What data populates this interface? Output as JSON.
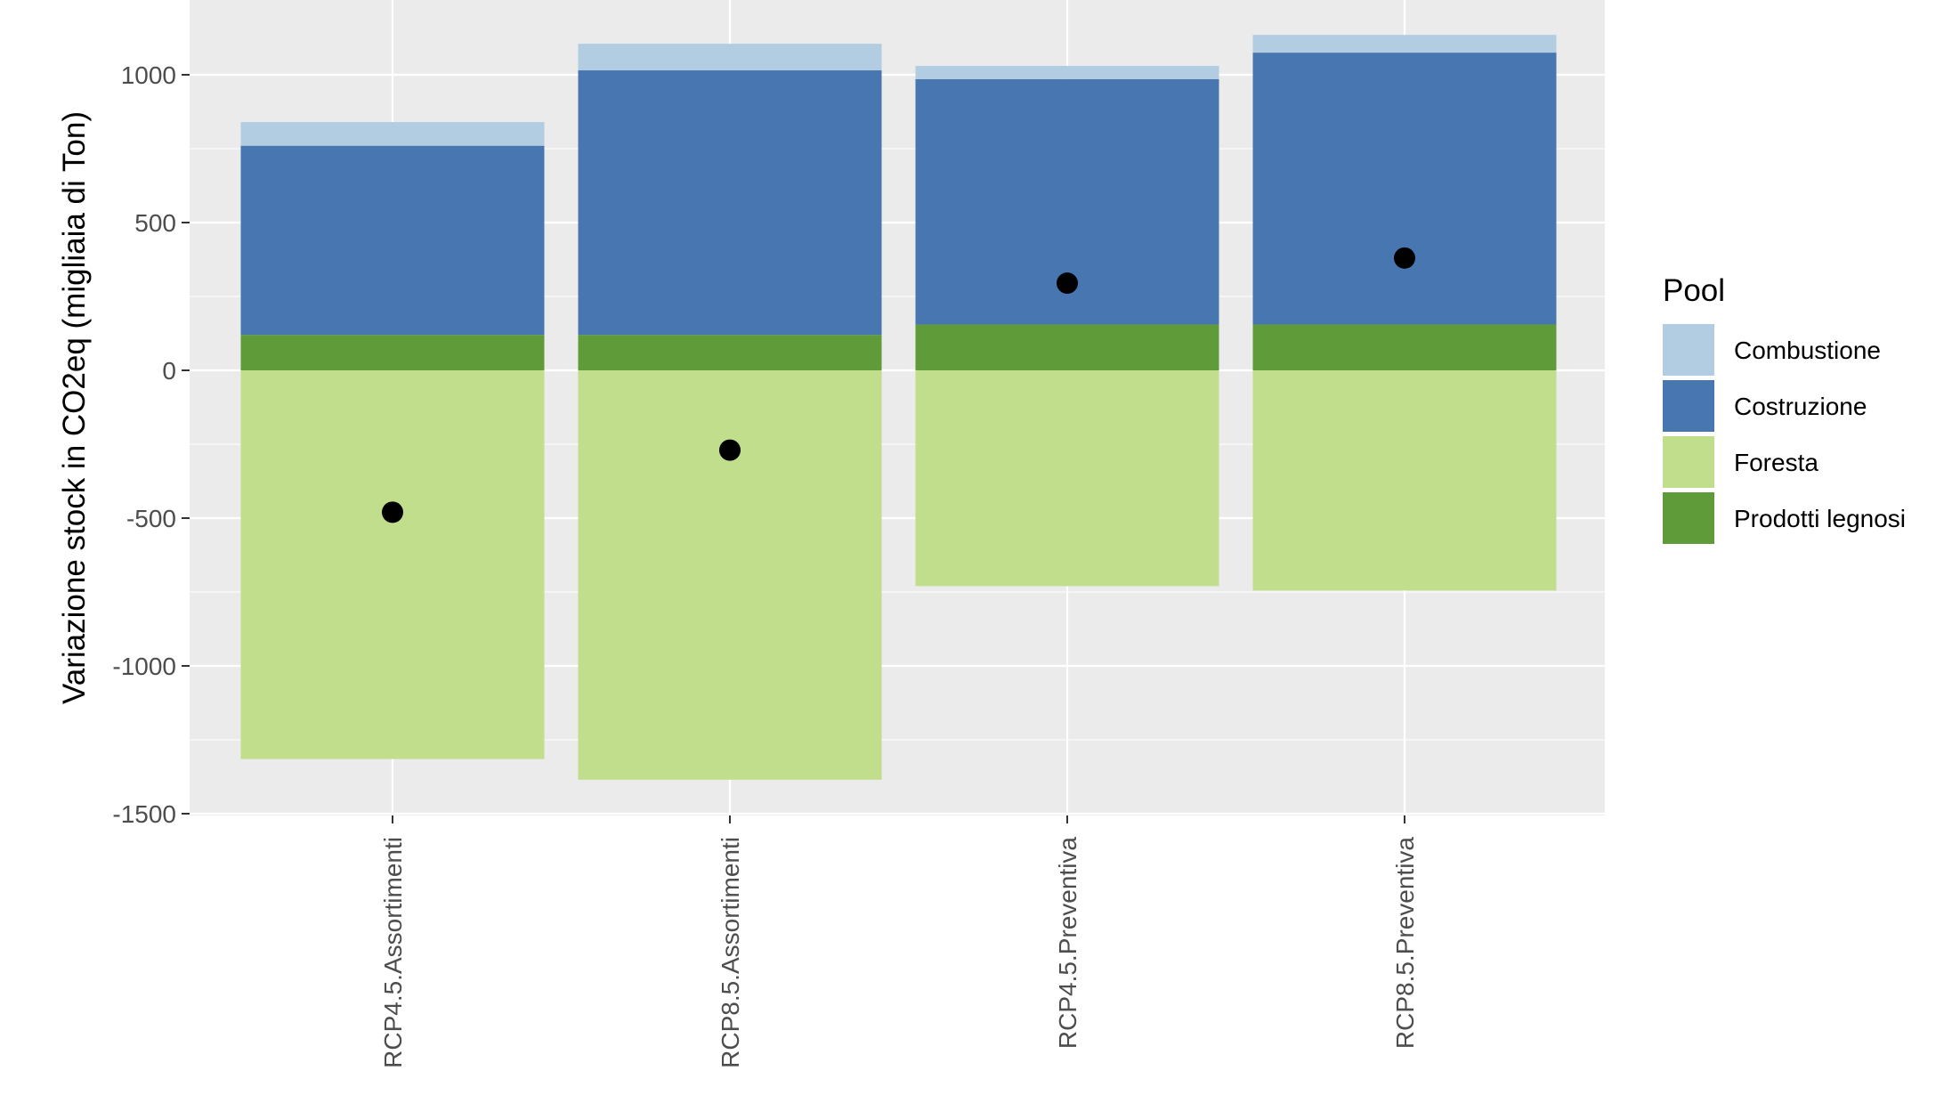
{
  "chart_data": {
    "type": "bar",
    "stacked": true,
    "categories": [
      "RCP4.5.Assortimenti",
      "RCP8.5.Assortimenti",
      "RCP4.5.Preventiva",
      "RCP8.5.Preventiva"
    ],
    "series": [
      {
        "name": "Prodotti legnosi",
        "color": "#5f9b39",
        "values": [
          120,
          120,
          155,
          155
        ]
      },
      {
        "name": "Costruzione",
        "color": "#4776b0",
        "values": [
          640,
          895,
          830,
          920
        ]
      },
      {
        "name": "Combustione",
        "color": "#b2cde2",
        "values": [
          80,
          90,
          45,
          60
        ]
      },
      {
        "name": "Foresta",
        "color": "#c0de8c",
        "values": [
          -1315,
          -1385,
          -730,
          -745
        ]
      }
    ],
    "net_points": [
      -480,
      -270,
      295,
      380
    ],
    "ylabel": "Variazione stock in CO2eq (migliaia di Ton)",
    "xlabel": "",
    "ylim": [
      -1500,
      1250
    ],
    "yticks": [
      -1500,
      -1000,
      -500,
      0,
      500,
      1000
    ],
    "ytick_labels": [
      "-1500",
      "-1000",
      "-500",
      "0",
      "500",
      "1000"
    ],
    "legend": {
      "title": "Pool",
      "position": "right",
      "entries": [
        {
          "label": "Combustione",
          "color": "#b2cde2"
        },
        {
          "label": "Costruzione",
          "color": "#4776b0"
        },
        {
          "label": "Foresta",
          "color": "#c0de8c"
        },
        {
          "label": "Prodotti legnosi",
          "color": "#5f9b39"
        }
      ]
    },
    "grid": true,
    "panel_background": "#ebebeb",
    "point_color": "#000000"
  }
}
